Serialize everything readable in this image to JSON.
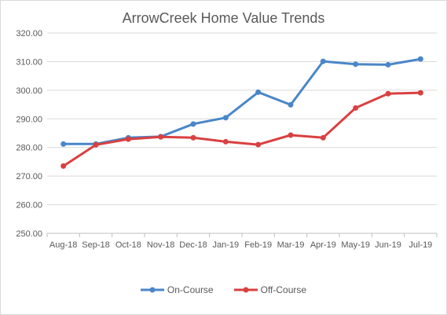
{
  "chart_data": {
    "type": "line",
    "title": "ArrowCreek Home Value Trends",
    "xlabel": "",
    "ylabel": "",
    "categories": [
      "Aug-18",
      "Sep-18",
      "Oct-18",
      "Nov-18",
      "Dec-18",
      "Jan-19",
      "Feb-19",
      "Mar-19",
      "Apr-19",
      "May-19",
      "Jun-19",
      "Jul-19"
    ],
    "ylim": [
      250,
      320
    ],
    "yticks": [
      "250.00",
      "260.00",
      "270.00",
      "280.00",
      "290.00",
      "300.00",
      "310.00",
      "320.00"
    ],
    "grid": true,
    "legend_position": "bottom",
    "series": [
      {
        "name": "On-Course",
        "color": "#4a86c8",
        "values": [
          281.2,
          281.2,
          283.4,
          283.8,
          288.2,
          290.4,
          299.3,
          294.9,
          310.1,
          309.1,
          308.9,
          310.9
        ]
      },
      {
        "name": "Off-Course",
        "color": "#d94040",
        "values": [
          273.5,
          280.9,
          282.9,
          283.7,
          283.4,
          282.0,
          281.0,
          284.3,
          283.4,
          293.8,
          298.8,
          299.1
        ]
      }
    ]
  }
}
